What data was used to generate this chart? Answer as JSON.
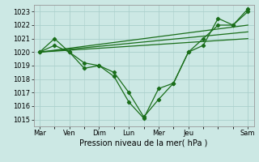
{
  "title": "Pression niveau de la mer( hPa )",
  "ylim": [
    1014.5,
    1023.5
  ],
  "yticks": [
    1015,
    1016,
    1017,
    1018,
    1019,
    1020,
    1021,
    1022,
    1023
  ],
  "day_labels": [
    "Mar",
    "Ven",
    "Dim",
    "Lun",
    "Mer",
    "Jeu",
    "Sam"
  ],
  "bg_color": "#cce8e4",
  "grid_color": "#aacfcb",
  "line_color": "#1a6e1a",
  "series": [
    {
      "x": [
        0,
        0.5,
        1.0,
        1.5,
        2.0,
        2.5,
        3.0,
        3.5,
        4.0,
        4.5,
        5.0,
        5.5,
        6.0,
        6.5,
        7.0
      ],
      "y": [
        1020.0,
        1021.0,
        1020.0,
        1019.2,
        1019.0,
        1018.2,
        1016.3,
        1015.1,
        1017.3,
        1017.7,
        1020.0,
        1020.5,
        1022.5,
        1022.0,
        1023.2
      ]
    },
    {
      "x": [
        0,
        0.5,
        1.0,
        1.5,
        2.0,
        2.5,
        3.0,
        3.5,
        4.0,
        4.5,
        5.0,
        5.5,
        6.0,
        6.5,
        7.0
      ],
      "y": [
        1020.0,
        1020.5,
        1020.0,
        1018.8,
        1019.0,
        1018.5,
        1017.0,
        1015.2,
        1016.5,
        1017.7,
        1020.0,
        1021.0,
        1022.0,
        1022.0,
        1023.0
      ]
    },
    {
      "x": [
        0,
        7.0
      ],
      "y": [
        1020.0,
        1021.0
      ]
    },
    {
      "x": [
        0,
        7.0
      ],
      "y": [
        1020.0,
        1021.5
      ]
    },
    {
      "x": [
        0,
        7.0
      ],
      "y": [
        1020.0,
        1022.0
      ]
    }
  ],
  "xlim": [
    -0.2,
    7.2
  ],
  "day_x": [
    0,
    1,
    2,
    3,
    4,
    5,
    7
  ],
  "figsize": [
    3.2,
    2.0
  ],
  "dpi": 100
}
